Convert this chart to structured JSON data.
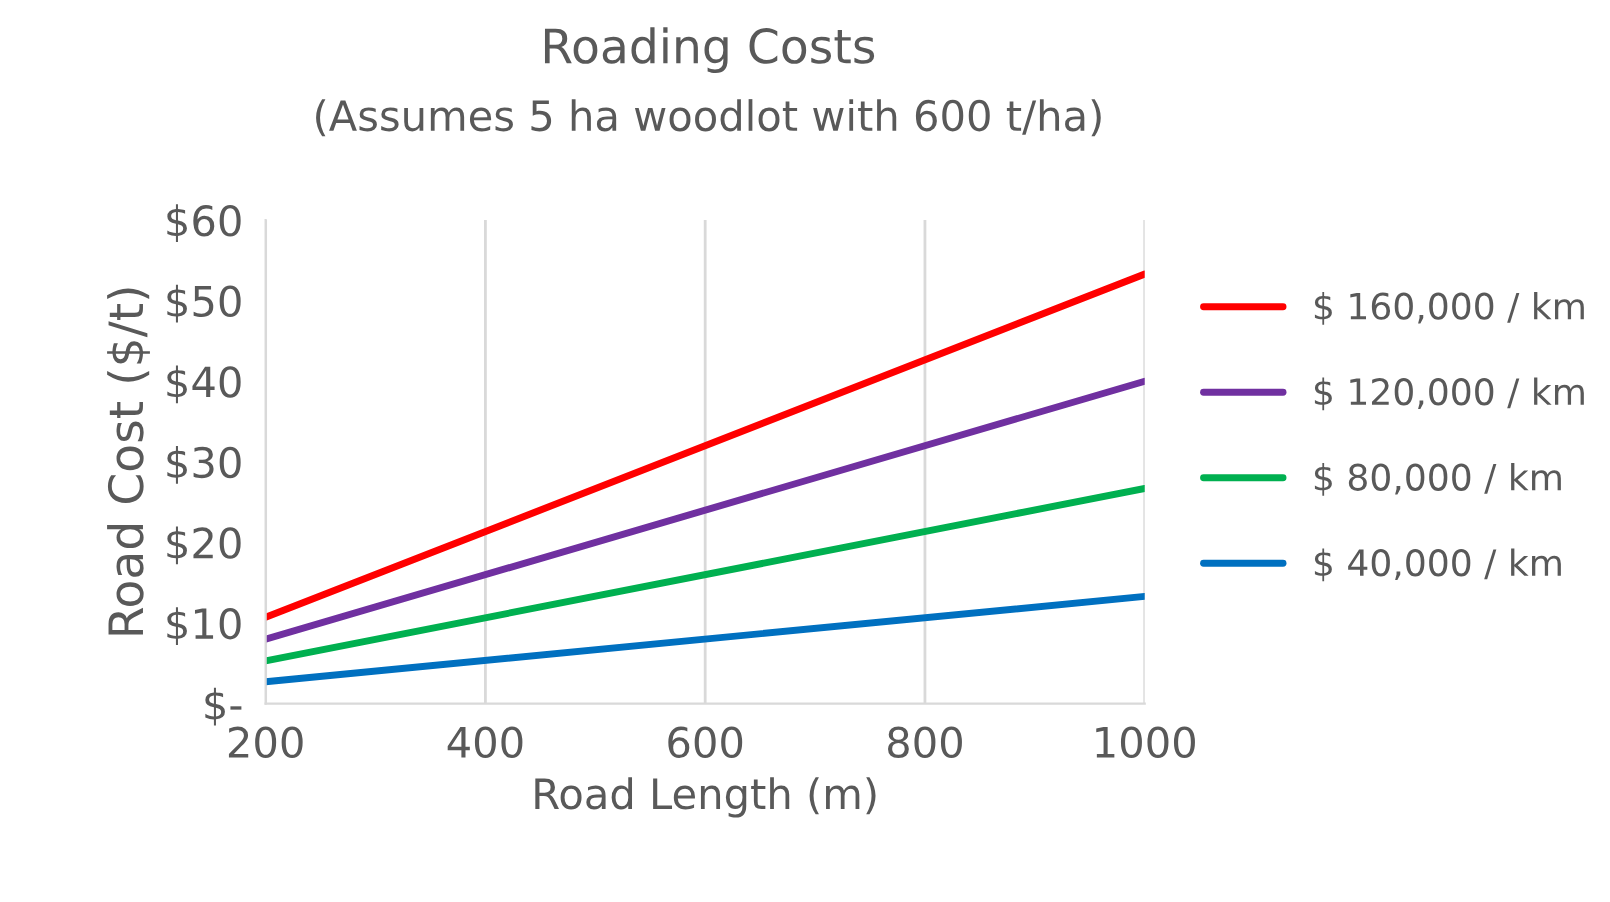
{
  "chart_data": {
    "type": "line",
    "title": "Roading Costs",
    "subtitle": "(Assumes 5 ha woodlot with 600 t/ha)",
    "xlabel": "Road Length (m)",
    "ylabel": "Road Cost ($/t)",
    "x": [
      200,
      1000
    ],
    "series": [
      {
        "name": "$ 160,000 / km",
        "color": "#ff0000",
        "values": [
          10.7,
          53.3
        ]
      },
      {
        "name": "$ 120,000 / km",
        "color": "#7030a0",
        "values": [
          8.0,
          40.0
        ]
      },
      {
        "name": "$ 80,000 / km",
        "color": "#00b050",
        "values": [
          5.3,
          26.7
        ]
      },
      {
        "name": "$ 40,000 / km",
        "color": "#0070c0",
        "values": [
          2.7,
          13.3
        ]
      }
    ],
    "xlim": [
      200,
      1000
    ],
    "xticks": [
      200,
      400,
      600,
      800,
      1000
    ],
    "ylim": [
      0,
      60
    ],
    "yticks": [
      {
        "value": 0,
        "label": "$-"
      },
      {
        "value": 10,
        "label": "$10"
      },
      {
        "value": 20,
        "label": "$20"
      },
      {
        "value": 30,
        "label": "$30"
      },
      {
        "value": 40,
        "label": "$40"
      },
      {
        "value": 50,
        "label": "$50"
      },
      {
        "value": 60,
        "label": "$60"
      }
    ],
    "grid": "x",
    "legend": "right",
    "line_style": "solid",
    "marker": "none"
  }
}
